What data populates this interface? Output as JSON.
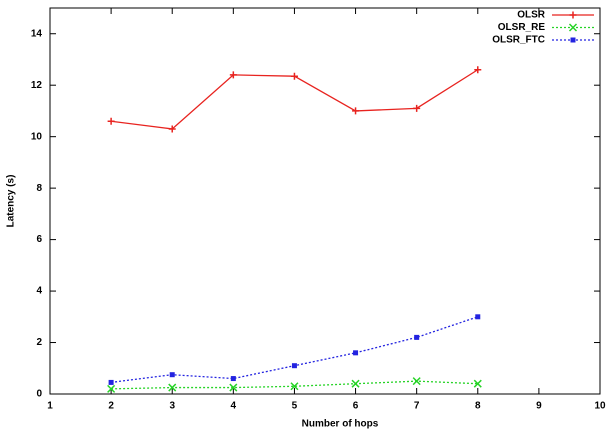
{
  "chart_data": {
    "type": "line",
    "x_label": "Number of hops",
    "y_label": "Latency (s)",
    "x": [
      2,
      3,
      4,
      5,
      6,
      7,
      8
    ],
    "series": [
      {
        "name": "OLSR",
        "color": "#e8231f",
        "marker": "plus",
        "dashed": false,
        "values": [
          10.6,
          10.3,
          12.4,
          12.35,
          11.0,
          11.1,
          12.6
        ]
      },
      {
        "name": "OLSR_RE",
        "color": "#26d326",
        "marker": "cross",
        "dashed": true,
        "values": [
          0.2,
          0.25,
          0.25,
          0.3,
          0.4,
          0.5,
          0.4
        ]
      },
      {
        "name": "OLSR_FTC",
        "color": "#2323e0",
        "marker": "square",
        "dashed": true,
        "values": [
          0.45,
          0.75,
          0.6,
          1.1,
          1.6,
          2.2,
          3.0
        ]
      }
    ],
    "xlim": [
      1,
      10
    ],
    "xticks": [
      1,
      2,
      3,
      4,
      5,
      6,
      7,
      8,
      9,
      10
    ],
    "ylim": [
      0,
      15
    ],
    "yticks": [
      0,
      2,
      4,
      6,
      8,
      10,
      12,
      14
    ],
    "grid": false,
    "legend": "top-right"
  }
}
